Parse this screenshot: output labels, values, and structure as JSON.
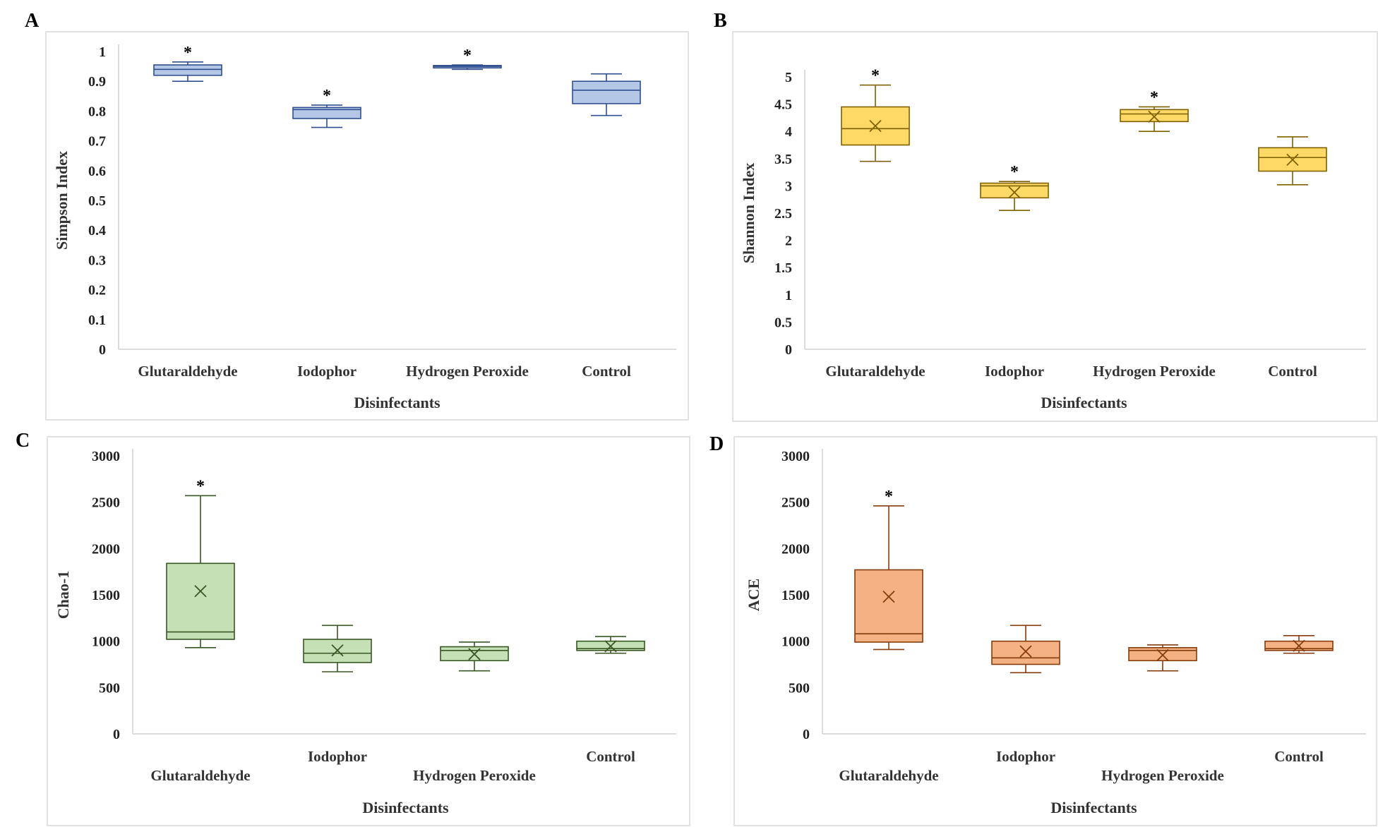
{
  "chart_data": [
    {
      "panel": "A",
      "type": "box",
      "ylabel": "Simpson Index",
      "xlabel": "Disinfectants",
      "ylim": [
        0,
        1
      ],
      "yticks": [
        0,
        0.1,
        0.2,
        0.3,
        0.4,
        0.5,
        0.6,
        0.7,
        0.8,
        0.9,
        1
      ],
      "color": "#b4c7e7",
      "line_color": "#2f4f8f",
      "show_mean": false,
      "categories": [
        "Glutaraldehyde",
        "Iodophor",
        "Hydrogen Peroxide",
        "Control"
      ],
      "boxes": [
        {
          "min": 0.9,
          "q1": 0.92,
          "median": 0.94,
          "q3": 0.955,
          "max": 0.965,
          "significant": true
        },
        {
          "min": 0.745,
          "q1": 0.775,
          "median": 0.805,
          "q3": 0.812,
          "max": 0.82,
          "significant": true
        },
        {
          "min": 0.94,
          "q1": 0.945,
          "median": 0.95,
          "q3": 0.953,
          "max": 0.955,
          "significant": true
        },
        {
          "min": 0.785,
          "q1": 0.825,
          "median": 0.87,
          "q3": 0.9,
          "max": 0.925,
          "significant": false
        }
      ]
    },
    {
      "panel": "B",
      "type": "box",
      "ylabel": "Shannon Index",
      "xlabel": "Disinfectants",
      "ylim": [
        0,
        5
      ],
      "yticks": [
        0,
        0.5,
        1,
        1.5,
        2,
        2.5,
        3,
        3.5,
        4,
        4.5,
        5
      ],
      "color": "#ffd966",
      "line_color": "#7f6000",
      "show_mean": true,
      "categories": [
        "Glutaraldehyde",
        "Iodophor",
        "Hydrogen Peroxide",
        "Control"
      ],
      "boxes": [
        {
          "min": 3.45,
          "q1": 3.75,
          "median": 4.05,
          "q3": 4.45,
          "max": 4.85,
          "mean": 4.1,
          "significant": true
        },
        {
          "min": 2.55,
          "q1": 2.78,
          "median": 3.0,
          "q3": 3.05,
          "max": 3.08,
          "mean": 2.88,
          "significant": true
        },
        {
          "min": 4.0,
          "q1": 4.18,
          "median": 4.32,
          "q3": 4.4,
          "max": 4.45,
          "mean": 4.27,
          "significant": true
        },
        {
          "min": 3.02,
          "q1": 3.27,
          "median": 3.52,
          "q3": 3.7,
          "max": 3.9,
          "mean": 3.48,
          "significant": false
        }
      ]
    },
    {
      "panel": "C",
      "type": "box",
      "ylabel": "Chao-1",
      "xlabel": "Disinfectants",
      "ylim": [
        0,
        3000
      ],
      "yticks": [
        0,
        500,
        1000,
        1500,
        2000,
        2500,
        3000
      ],
      "color": "#c5e0b4",
      "line_color": "#385723",
      "show_mean": true,
      "categories": [
        "Glutaraldehyde",
        "Iodophor",
        "Hydrogen Peroxide",
        "Control"
      ],
      "boxes": [
        {
          "min": 930,
          "q1": 1020,
          "median": 1100,
          "q3": 1840,
          "max": 2570,
          "mean": 1540,
          "significant": true
        },
        {
          "min": 670,
          "q1": 770,
          "median": 870,
          "q3": 1020,
          "max": 1170,
          "mean": 900,
          "significant": false
        },
        {
          "min": 680,
          "q1": 790,
          "median": 900,
          "q3": 940,
          "max": 990,
          "mean": 860,
          "significant": false
        },
        {
          "min": 870,
          "q1": 900,
          "median": 920,
          "q3": 1000,
          "max": 1050,
          "mean": 945,
          "significant": false
        }
      ]
    },
    {
      "panel": "D",
      "type": "box",
      "ylabel": "ACE",
      "xlabel": "Disinfectants",
      "ylim": [
        0,
        3000
      ],
      "yticks": [
        0,
        500,
        1000,
        1500,
        2000,
        2500,
        3000
      ],
      "color": "#f4b183",
      "line_color": "#843c0c",
      "show_mean": true,
      "categories": [
        "Glutaraldehyde",
        "Iodophor",
        "Hydrogen Peroxide",
        "Control"
      ],
      "boxes": [
        {
          "min": 910,
          "q1": 990,
          "median": 1080,
          "q3": 1770,
          "max": 2460,
          "mean": 1480,
          "significant": true
        },
        {
          "min": 660,
          "q1": 750,
          "median": 820,
          "q3": 1000,
          "max": 1170,
          "mean": 890,
          "significant": false
        },
        {
          "min": 680,
          "q1": 790,
          "median": 900,
          "q3": 930,
          "max": 960,
          "mean": 850,
          "significant": false
        },
        {
          "min": 870,
          "q1": 900,
          "median": 920,
          "q3": 1000,
          "max": 1060,
          "mean": 950,
          "significant": false
        }
      ]
    }
  ],
  "significance_marker": "*"
}
